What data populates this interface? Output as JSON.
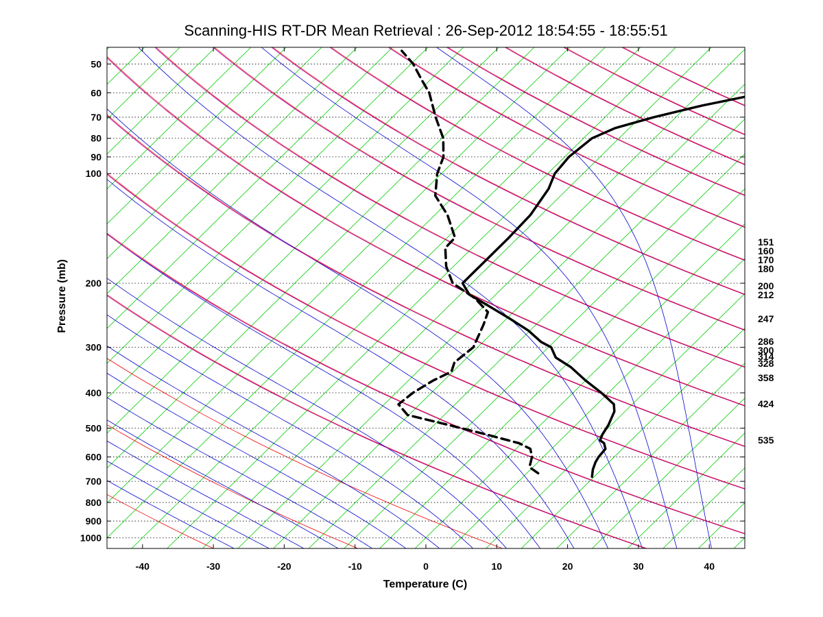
{
  "chart_data": {
    "type": "line",
    "title": "Scanning-HIS RT-DR Mean Retrieval : 26-Sep-2012 18:54:55 - 18:55:51",
    "xlabel": "Temperature (C)",
    "ylabel": "Pressure (mb)",
    "xlim": [
      -45,
      45
    ],
    "ylim_pressure": [
      1070,
      45
    ],
    "x_scale": "skewed temperature (skew-T)",
    "y_scale": "log",
    "x_ticks": [
      -40,
      -30,
      -20,
      -10,
      0,
      10,
      20,
      30,
      40
    ],
    "y_ticks": [
      50,
      60,
      70,
      80,
      90,
      100,
      200,
      300,
      400,
      500,
      600,
      700,
      800,
      900,
      1000
    ],
    "y_grid": "dotted",
    "right_labels": [
      "151",
      "160",
      "170",
      "180",
      "200",
      "212",
      "247",
      "286",
      "300",
      "314",
      "328",
      "358",
      "424",
      "535"
    ],
    "colors": {
      "temperature": "#000000",
      "dewpoint": "#000000",
      "isotherm": "#00cc00",
      "dry_adiabat": "#ee0000",
      "moist_adiabat": "#0000cc",
      "dry_adiabat_overlay": "#aa00aa"
    },
    "series": [
      {
        "style": "solid",
        "points": [
          {
            "p": 680,
            "t": 14.7
          },
          {
            "p": 650,
            "t": 13.8
          },
          {
            "p": 620,
            "t": 13.1
          },
          {
            "p": 600,
            "t": 12.8
          },
          {
            "p": 570,
            "t": 12.6
          },
          {
            "p": 550,
            "t": 11.6
          },
          {
            "p": 540,
            "t": 10.6
          },
          {
            "p": 520,
            "t": 10.1
          },
          {
            "p": 490,
            "t": 9.6
          },
          {
            "p": 450,
            "t": 8.5
          },
          {
            "p": 430,
            "t": 7.4
          },
          {
            "p": 400,
            "t": 4.0
          },
          {
            "p": 370,
            "t": 0.0
          },
          {
            "p": 340,
            "t": -4.0
          },
          {
            "p": 320,
            "t": -7.5
          },
          {
            "p": 300,
            "t": -9.6
          },
          {
            "p": 290,
            "t": -11.8
          },
          {
            "p": 270,
            "t": -15.2
          },
          {
            "p": 250,
            "t": -19.6
          },
          {
            "p": 230,
            "t": -24.6
          },
          {
            "p": 215,
            "t": -28.7
          },
          {
            "p": 200,
            "t": -31.3
          },
          {
            "p": 190,
            "t": -31.3
          },
          {
            "p": 170,
            "t": -31.3
          },
          {
            "p": 150,
            "t": -31.3
          },
          {
            "p": 130,
            "t": -31.5
          },
          {
            "p": 110,
            "t": -32.7
          },
          {
            "p": 100,
            "t": -34.0
          },
          {
            "p": 90,
            "t": -34.4
          },
          {
            "p": 80,
            "t": -33.8
          },
          {
            "p": 75,
            "t": -32.0
          },
          {
            "p": 70,
            "t": -28.1
          },
          {
            "p": 65,
            "t": -22.9
          },
          {
            "p": 60,
            "t": -16.0
          },
          {
            "p": 55,
            "t": -10.1
          },
          {
            "p": 50,
            "t": -4.0
          },
          {
            "p": 46,
            "t": 0.5
          }
        ]
      },
      {
        "style": "dashed",
        "points": [
          {
            "p": 665,
            "t": 6.6
          },
          {
            "p": 640,
            "t": 4.5
          },
          {
            "p": 600,
            "t": 3.4
          },
          {
            "p": 570,
            "t": 2.0
          },
          {
            "p": 550,
            "t": -0.4
          },
          {
            "p": 520,
            "t": -6.4
          },
          {
            "p": 490,
            "t": -13.0
          },
          {
            "p": 460,
            "t": -20.2
          },
          {
            "p": 430,
            "t": -23.0
          },
          {
            "p": 400,
            "t": -22.6
          },
          {
            "p": 370,
            "t": -21.5
          },
          {
            "p": 350,
            "t": -20.2
          },
          {
            "p": 330,
            "t": -21.1
          },
          {
            "p": 300,
            "t": -20.6
          },
          {
            "p": 260,
            "t": -22.4
          },
          {
            "p": 240,
            "t": -23.6
          },
          {
            "p": 220,
            "t": -27.4
          },
          {
            "p": 200,
            "t": -32.7
          },
          {
            "p": 180,
            "t": -36.0
          },
          {
            "p": 160,
            "t": -38.8
          },
          {
            "p": 150,
            "t": -38.9
          },
          {
            "p": 130,
            "t": -43.2
          },
          {
            "p": 115,
            "t": -47.7
          },
          {
            "p": 100,
            "t": -50.6
          },
          {
            "p": 90,
            "t": -52.1
          },
          {
            "p": 80,
            "t": -54.8
          },
          {
            "p": 70,
            "t": -58.9
          },
          {
            "p": 60,
            "t": -63.3
          },
          {
            "p": 55,
            "t": -66.4
          },
          {
            "p": 50,
            "t": -69.7
          },
          {
            "p": 46,
            "t": -73.2
          }
        ]
      }
    ]
  }
}
